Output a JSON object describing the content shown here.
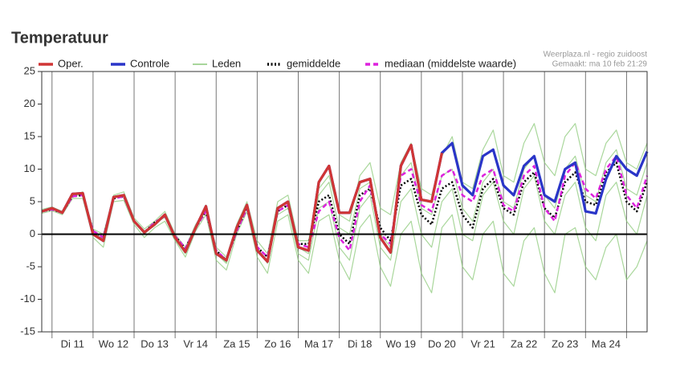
{
  "chart_data": {
    "type": "line",
    "title": "Temperatuur",
    "source": "Weerplaza.nl - regio zuidoost",
    "created": "Gemaakt: ma 10 feb 21:29",
    "x": [
      0,
      1,
      2,
      3,
      4,
      5,
      6,
      7,
      8,
      9,
      10,
      11,
      12,
      13,
      14,
      15,
      16,
      17,
      18,
      19,
      20,
      21,
      22,
      23,
      24,
      25,
      26,
      27,
      28,
      29,
      30,
      31,
      32,
      33,
      34,
      35,
      36,
      37,
      38,
      39,
      40,
      41,
      42,
      43,
      44,
      45,
      46,
      47,
      48,
      49,
      50,
      51,
      52,
      53,
      54,
      55,
      56,
      57,
      58,
      59
    ],
    "xlim": [
      0,
      59
    ],
    "xticks": [
      {
        "value": 3,
        "label": "Di 11"
      },
      {
        "value": 7,
        "label": "Wo 12"
      },
      {
        "value": 11,
        "label": "Do 13"
      },
      {
        "value": 15,
        "label": "Vr 14"
      },
      {
        "value": 19,
        "label": "Za 15"
      },
      {
        "value": 23,
        "label": "Zo 16"
      },
      {
        "value": 27,
        "label": "Ma 17"
      },
      {
        "value": 31,
        "label": "Di 18"
      },
      {
        "value": 35,
        "label": "Wo 19"
      },
      {
        "value": 39,
        "label": "Do 20"
      },
      {
        "value": 43,
        "label": "Vr 21"
      },
      {
        "value": 47,
        "label": "Za 22"
      },
      {
        "value": 51,
        "label": "Zo 23"
      },
      {
        "value": 55,
        "label": "Ma 24"
      }
    ],
    "day_boundaries": [
      1,
      5,
      9,
      13,
      17,
      21,
      25,
      29,
      33,
      37,
      41,
      45,
      49,
      53,
      57
    ],
    "ylim": [
      -15,
      25
    ],
    "yticks": [
      -15,
      -10,
      -5,
      0,
      5,
      10,
      15,
      20,
      25
    ],
    "zero_line": 0,
    "series": [
      {
        "name": "Leden",
        "color": "#8cc97a",
        "values": [
          3.8,
          4.2,
          3.5,
          6,
          6.5,
          0.8,
          0,
          6,
          6.5,
          2.5,
          0.8,
          2,
          3.5,
          0,
          -2,
          1.5,
          4,
          -2,
          -3.5,
          1.5,
          5,
          -1,
          -3,
          5,
          6,
          -1,
          -1,
          7,
          9,
          3,
          2,
          9,
          11,
          4,
          3,
          11,
          14,
          7,
          6,
          12,
          15,
          8,
          7,
          13,
          16,
          9,
          8,
          14,
          17,
          11,
          9,
          15,
          17,
          10,
          9,
          14,
          16,
          11,
          10,
          14
        ]
      },
      {
        "name": "Leden",
        "color": "#8cc97a",
        "values": [
          3.2,
          3.6,
          3,
          5.5,
          5.5,
          -0.5,
          -2,
          5,
          5.2,
          1.5,
          -0.5,
          1,
          2,
          -1,
          -3.5,
          0.5,
          3,
          -4,
          -5.5,
          0,
          3.5,
          -3.5,
          -6,
          2,
          3,
          -4,
          -6,
          2,
          3,
          -4,
          -7,
          1,
          3,
          -5,
          -8,
          0,
          2,
          -6,
          -9,
          1,
          3,
          -5,
          -7,
          0,
          2,
          -6,
          -8,
          -1,
          1,
          -6,
          -9,
          0,
          1,
          -5,
          -7,
          -2,
          0,
          -7,
          -5,
          -1
        ]
      },
      {
        "name": "Leden",
        "color": "#8cc97a",
        "values": [
          3.6,
          4,
          3.4,
          6.2,
          6.2,
          0,
          -1.2,
          5.8,
          6,
          2,
          0,
          1.5,
          3,
          -0.5,
          -2.5,
          1,
          4.5,
          -3,
          -4.5,
          1,
          4.5,
          -2.5,
          -4,
          4,
          5,
          -2,
          -3,
          6,
          8,
          1,
          0,
          7,
          8,
          0,
          -2,
          9,
          11,
          4,
          3,
          9,
          10,
          4,
          2,
          8,
          10,
          5,
          4,
          10,
          12,
          6,
          4,
          10,
          12,
          6,
          5,
          11,
          13,
          7,
          6,
          11
        ]
      },
      {
        "name": "Leden",
        "color": "#8cc97a",
        "values": [
          3.4,
          3.9,
          3.2,
          6,
          6,
          0.2,
          -0.8,
          5.6,
          5.9,
          1.8,
          0.2,
          1.6,
          2.6,
          -0.8,
          -3,
          0.8,
          3.8,
          -2.8,
          -4.3,
          0.7,
          4.2,
          -2,
          -4.5,
          3,
          4,
          -3,
          -4,
          4,
          5,
          -2,
          -4,
          4,
          6,
          -2,
          -4,
          5,
          7,
          0,
          -2,
          5,
          7,
          0,
          -1,
          6,
          8,
          2,
          0,
          7,
          9,
          2,
          0,
          6,
          8,
          1,
          -1,
          6,
          8,
          2,
          0,
          6
        ]
      },
      {
        "name": "gemiddelde",
        "color": "#000000",
        "dash": "dotted",
        "values": [
          3.5,
          3.8,
          3.3,
          5.8,
          6,
          0.5,
          -0.5,
          5.5,
          5.8,
          2,
          0.3,
          1.8,
          2.8,
          -0.3,
          -2.2,
          1,
          3.5,
          -2.5,
          -4,
          0.5,
          4,
          -2,
          -3.5,
          3.5,
          4.5,
          -1.5,
          -1.5,
          5,
          6,
          0,
          -1.5,
          6,
          7,
          1,
          -1,
          7.5,
          8.5,
          3,
          1.5,
          7,
          8,
          3,
          1,
          7,
          8.5,
          4,
          3,
          8,
          9.5,
          4,
          2.5,
          8,
          9.5,
          5,
          4.5,
          9.5,
          11,
          5,
          3.5,
          8
        ]
      },
      {
        "name": "mediaan (middelste waarde)",
        "color": "#dd22dd",
        "dash": "dashed",
        "values": [
          3.5,
          3.8,
          3.3,
          5.8,
          6,
          0.5,
          -0.5,
          5.5,
          5.8,
          2,
          0.3,
          1.8,
          2.8,
          -0.3,
          -2.2,
          1,
          3.5,
          -2.5,
          -4,
          0.5,
          4,
          -2,
          -3.5,
          3.5,
          4.5,
          -1.5,
          -2,
          3.5,
          5,
          -0.5,
          -2.5,
          5,
          7.5,
          0,
          -1.5,
          9,
          10,
          4.5,
          3.5,
          9,
          10,
          6,
          5,
          9,
          10,
          4.5,
          3.5,
          9,
          10.5,
          4,
          2,
          9,
          11,
          7,
          5.5,
          10,
          12,
          6,
          4,
          9
        ]
      },
      {
        "name": "Controle",
        "color": "#2a35c8",
        "values": [
          3.5,
          4,
          3.3,
          6.2,
          6.3,
          0,
          -1,
          5.7,
          6,
          2,
          0.3,
          1.5,
          3,
          -0.5,
          -2.7,
          1,
          4.3,
          -3,
          -4,
          1,
          4.5,
          -2.5,
          -4.2,
          4,
          5,
          -2,
          -2.5,
          8,
          10.5,
          3.3,
          3.3,
          8,
          8.5,
          -0.5,
          -2.8,
          10.5,
          13.7,
          5.3,
          5,
          12.5,
          14,
          7.5,
          6,
          12,
          13,
          7.5,
          6,
          10.5,
          12,
          6,
          5,
          10,
          11,
          3.5,
          3.2,
          8.5,
          12,
          10,
          9,
          12.7
        ]
      },
      {
        "name": "Oper.",
        "color": "#d03535",
        "values": [
          3.5,
          4,
          3.3,
          6.2,
          6.3,
          0,
          -1,
          5.7,
          6,
          2,
          0.3,
          1.5,
          3,
          -0.5,
          -2.7,
          1,
          4.3,
          -3,
          -4,
          1,
          4.5,
          -2.5,
          -4.2,
          4,
          5,
          -2,
          -2.5,
          8,
          10.5,
          3.3,
          3.3,
          8,
          8.5,
          -0.5,
          -2.8,
          10.5,
          13.7,
          5.3,
          5,
          12.5,
          null,
          null,
          null,
          null,
          null,
          null,
          null,
          null,
          null,
          null,
          null,
          null,
          null,
          null,
          null,
          null,
          null,
          null,
          null,
          null
        ]
      }
    ],
    "legend_order": [
      "Oper.",
      "Controle",
      "Leden",
      "gemiddelde",
      "mediaan (middelste waarde)"
    ]
  }
}
